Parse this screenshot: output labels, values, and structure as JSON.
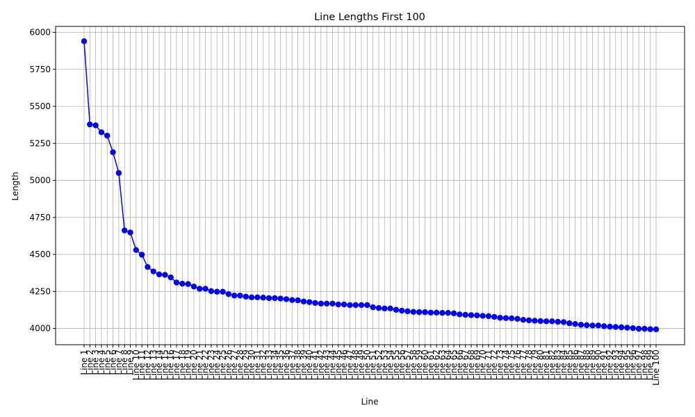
{
  "chart_data": {
    "type": "line",
    "title": "Line Lengths First 100",
    "xlabel": "Line",
    "ylabel": "Length",
    "ylim": [
      3890,
      6040
    ],
    "yticks": [
      4000,
      4250,
      4500,
      4750,
      5000,
      5250,
      5500,
      5750,
      6000
    ],
    "grid": true,
    "line_color": "#0000ff",
    "marker": "circle",
    "categories": [
      "Line 1",
      "Line 2",
      "Line 3",
      "Line 4",
      "Line 5",
      "Line 6",
      "Line 7",
      "Line 8",
      "Line 9",
      "Line 10",
      "Line 11",
      "Line 12",
      "Line 13",
      "Line 14",
      "Line 15",
      "Line 16",
      "Line 17",
      "Line 18",
      "Line 19",
      "Line 20",
      "Line 21",
      "Line 22",
      "Line 23",
      "Line 24",
      "Line 25",
      "Line 26",
      "Line 27",
      "Line 28",
      "Line 29",
      "Line 30",
      "Line 31",
      "Line 32",
      "Line 33",
      "Line 34",
      "Line 35",
      "Line 36",
      "Line 37",
      "Line 38",
      "Line 39",
      "Line 40",
      "Line 41",
      "Line 42",
      "Line 43",
      "Line 44",
      "Line 45",
      "Line 46",
      "Line 47",
      "Line 48",
      "Line 49",
      "Line 50",
      "Line 51",
      "Line 52",
      "Line 53",
      "Line 54",
      "Line 55",
      "Line 56",
      "Line 57",
      "Line 58",
      "Line 59",
      "Line 60",
      "Line 61",
      "Line 62",
      "Line 63",
      "Line 64",
      "Line 65",
      "Line 66",
      "Line 67",
      "Line 68",
      "Line 69",
      "Line 70",
      "Line 71",
      "Line 72",
      "Line 73",
      "Line 74",
      "Line 75",
      "Line 76",
      "Line 77",
      "Line 78",
      "Line 79",
      "Line 80",
      "Line 81",
      "Line 82",
      "Line 83",
      "Line 84",
      "Line 85",
      "Line 86",
      "Line 87",
      "Line 88",
      "Line 89",
      "Line 90",
      "Line 91",
      "Line 92",
      "Line 93",
      "Line 94",
      "Line 95",
      "Line 96",
      "Line 97",
      "Line 98",
      "Line 99",
      "Line 100"
    ],
    "values": [
      5940,
      5378,
      5372,
      5325,
      5302,
      5190,
      5050,
      4662,
      4648,
      4530,
      4498,
      4415,
      4385,
      4365,
      4362,
      4345,
      4310,
      4302,
      4300,
      4283,
      4268,
      4268,
      4252,
      4248,
      4248,
      4232,
      4222,
      4222,
      4215,
      4210,
      4210,
      4208,
      4205,
      4205,
      4202,
      4198,
      4192,
      4190,
      4182,
      4178,
      4172,
      4168,
      4168,
      4168,
      4162,
      4162,
      4158,
      4158,
      4158,
      4158,
      4143,
      4138,
      4135,
      4135,
      4126,
      4120,
      4116,
      4112,
      4110,
      4110,
      4107,
      4107,
      4105,
      4105,
      4102,
      4095,
      4092,
      4090,
      4088,
      4085,
      4083,
      4078,
      4072,
      4070,
      4068,
      4065,
      4058,
      4055,
      4052,
      4050,
      4048,
      4048,
      4045,
      4043,
      4035,
      4030,
      4025,
      4022,
      4020,
      4020,
      4015,
      4012,
      4010,
      4008,
      4005,
      4002,
      3998,
      3998,
      3995,
      3994
    ]
  }
}
